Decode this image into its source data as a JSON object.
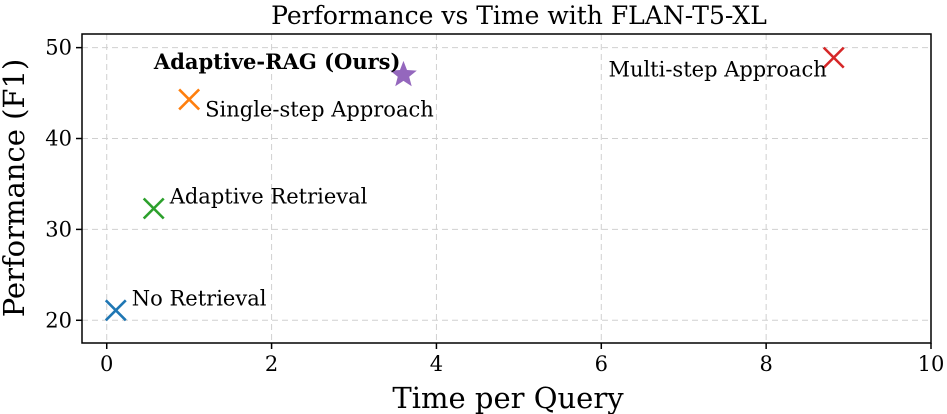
{
  "chart_data": {
    "type": "scatter",
    "title": "Performance vs Time with FLAN-T5-XL",
    "xlabel": "Time per Query",
    "ylabel": "Performance (F1)",
    "xlim": [
      -0.3,
      10
    ],
    "ylim": [
      17.5,
      51.5
    ],
    "xticks": [
      0,
      2,
      4,
      6,
      8,
      10
    ],
    "yticks": [
      20,
      30,
      40,
      50
    ],
    "grid": true,
    "points": [
      {
        "label": "No Retrieval",
        "x": 0.11,
        "y": 21.1,
        "marker": "x",
        "color": "#1f77b4",
        "bold": false,
        "label_side": "right"
      },
      {
        "label": "Adaptive Retrieval",
        "x": 0.57,
        "y": 32.3,
        "marker": "x",
        "color": "#2ca02c",
        "bold": false,
        "label_side": "right"
      },
      {
        "label": "Single-step Approach",
        "x": 1.0,
        "y": 44.3,
        "marker": "x",
        "color": "#ff7f0e",
        "bold": false,
        "label_side": "right-below"
      },
      {
        "label": "Adaptive-RAG (Ours)",
        "x": 3.6,
        "y": 47.0,
        "marker": "star",
        "color": "#9467bd",
        "bold": true,
        "label_side": "left-above"
      },
      {
        "label": "Multi-step Approach",
        "x": 8.82,
        "y": 48.9,
        "marker": "x",
        "color": "#d62728",
        "bold": false,
        "label_side": "left-below"
      }
    ]
  }
}
